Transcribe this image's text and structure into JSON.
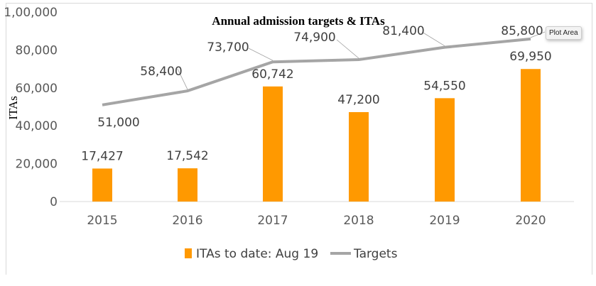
{
  "chart_data": {
    "type": "bar+line",
    "title": "Annual admission targets & ITAs",
    "ylabel": "ITAs",
    "xlabel": "",
    "ylim": [
      0,
      100000
    ],
    "yticks": [
      0,
      20000,
      40000,
      60000,
      80000,
      100000
    ],
    "ytick_labels": [
      "0",
      "20,000",
      "40,000",
      "60,000",
      "80,000",
      "1,00,000"
    ],
    "categories": [
      "2015",
      "2016",
      "2017",
      "2018",
      "2019",
      "2020"
    ],
    "series": [
      {
        "name": "ITAs to date: Aug 19",
        "type": "bar",
        "color": "#FF9900",
        "values": [
          17427,
          17542,
          60742,
          47200,
          54550,
          69950
        ],
        "labels": [
          "17,427",
          "17,542",
          "60,742",
          "47,200",
          "54,550",
          "69,950"
        ]
      },
      {
        "name": "Targets",
        "type": "line",
        "color": "#A5A5A5",
        "values": [
          51000,
          58400,
          73700,
          74900,
          81400,
          85800
        ],
        "labels": [
          "51,000",
          "58,400",
          "73,700",
          "74,900",
          "81,400",
          "85,800"
        ]
      }
    ],
    "legend": "bottom",
    "grid": false
  },
  "tooltip": "Plot Area"
}
